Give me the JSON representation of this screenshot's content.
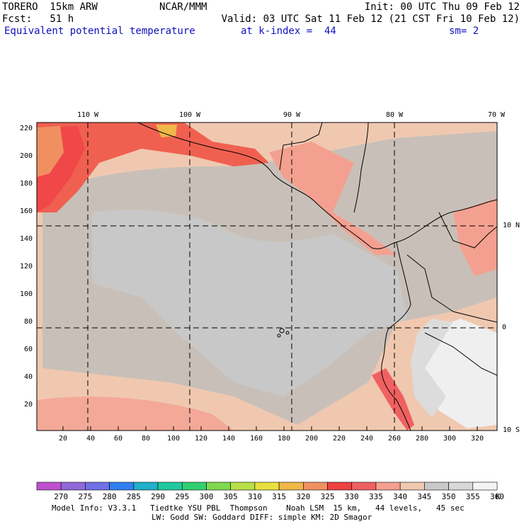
{
  "header": {
    "model": "TORERO  15km ARW",
    "org": "NCAR/MMM",
    "init": "Init: 00 UTC Thu 09 Feb 12",
    "fcst": "Fcst:   51 h",
    "valid": "Valid: 03 UTC Sat 11 Feb 12 (21 CST Fri 10 Feb 12)",
    "field": "Equivalent potential temperature",
    "level": "at k-index =  44",
    "smoothing": "sm= 2"
  },
  "map": {
    "x_ticks": [
      "20",
      "40",
      "60",
      "80",
      "100",
      "120",
      "140",
      "160",
      "180",
      "200",
      "220",
      "240",
      "260",
      "280",
      "300",
      "320"
    ],
    "y_ticks": [
      "20",
      "40",
      "60",
      "80",
      "100",
      "120",
      "140",
      "160",
      "180",
      "200",
      "220"
    ],
    "lon_labels": [
      "110 W",
      "100 W",
      "90 W",
      "80 W",
      "70 W"
    ],
    "lat_labels": [
      "10 N",
      "0",
      "10 S"
    ]
  },
  "colorbar": {
    "levels": [
      "270",
      "275",
      "280",
      "285",
      "290",
      "295",
      "300",
      "305",
      "310",
      "315",
      "320",
      "325",
      "330",
      "335",
      "340",
      "345",
      "350",
      "355",
      "360"
    ],
    "unit": "K",
    "colors": [
      "#c050d0",
      "#9068d8",
      "#7070e8",
      "#3080f0",
      "#20b0c8",
      "#20c8a0",
      "#30d070",
      "#80d850",
      "#b8e048",
      "#e8e040",
      "#f0b848",
      "#f09060",
      "#f04040",
      "#f06060",
      "#f4a090",
      "#f0c8b0",
      "#c8c8c8",
      "#d8d8d8",
      "#f4f4f4"
    ]
  },
  "footer": {
    "line1": "Model Info: V3.3.1   Tiedtke YSU PBL  Thompson    Noah LSM  15 km,   44 levels,   45 sec",
    "line2": "LW: Godd SW: Goddard DIFF: simple KM: 2D Smagor"
  }
}
